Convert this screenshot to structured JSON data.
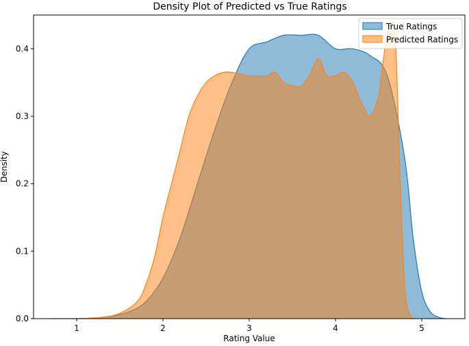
{
  "chart_data": {
    "type": "area",
    "title": "Density Plot of Predicted vs True Ratings",
    "xlabel": "Rating Value",
    "ylabel": "Density",
    "xlim": [
      0.5,
      5.5
    ],
    "ylim": [
      0,
      0.45
    ],
    "xticks": [
      1,
      2,
      3,
      4,
      5
    ],
    "yticks": [
      0.0,
      0.1,
      0.2,
      0.3,
      0.4
    ],
    "grid": false,
    "legend_position": "top-right",
    "series": [
      {
        "name": "True Ratings",
        "color": "#1f77b4",
        "x": [
          1.0,
          1.3,
          1.6,
          1.8,
          2.0,
          2.2,
          2.4,
          2.6,
          2.8,
          3.0,
          3.2,
          3.4,
          3.6,
          3.8,
          4.0,
          4.2,
          4.4,
          4.6,
          4.8,
          4.9,
          5.0,
          5.1,
          5.2,
          5.28
        ],
        "y": [
          0.0,
          0.002,
          0.01,
          0.025,
          0.06,
          0.12,
          0.2,
          0.28,
          0.35,
          0.4,
          0.41,
          0.42,
          0.42,
          0.42,
          0.4,
          0.4,
          0.39,
          0.36,
          0.24,
          0.12,
          0.04,
          0.01,
          0.002,
          0.0
        ]
      },
      {
        "name": "Predicted Ratings",
        "color": "#ff7f0e",
        "x": [
          0.7,
          1.0,
          1.3,
          1.5,
          1.7,
          1.8,
          1.9,
          2.0,
          2.1,
          2.2,
          2.3,
          2.4,
          2.5,
          2.6,
          2.7,
          2.8,
          3.0,
          3.2,
          3.3,
          3.4,
          3.5,
          3.6,
          3.7,
          3.8,
          3.9,
          4.0,
          4.1,
          4.2,
          4.3,
          4.4,
          4.5,
          4.55,
          4.6,
          4.65,
          4.7,
          4.75,
          4.8,
          4.85,
          4.9
        ],
        "y": [
          0.0,
          0.0,
          0.002,
          0.008,
          0.025,
          0.05,
          0.09,
          0.15,
          0.2,
          0.25,
          0.3,
          0.33,
          0.35,
          0.36,
          0.365,
          0.365,
          0.36,
          0.36,
          0.365,
          0.35,
          0.345,
          0.345,
          0.36,
          0.385,
          0.36,
          0.36,
          0.365,
          0.35,
          0.32,
          0.3,
          0.33,
          0.38,
          0.42,
          0.44,
          0.4,
          0.2,
          0.05,
          0.01,
          0.0
        ]
      }
    ]
  }
}
